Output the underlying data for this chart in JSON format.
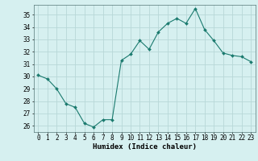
{
  "x": [
    0,
    1,
    2,
    3,
    4,
    5,
    6,
    7,
    8,
    9,
    10,
    11,
    12,
    13,
    14,
    15,
    16,
    17,
    18,
    19,
    20,
    21,
    22,
    23
  ],
  "y": [
    30.1,
    29.8,
    29.0,
    27.8,
    27.5,
    26.2,
    25.9,
    26.5,
    26.5,
    31.3,
    31.8,
    32.9,
    32.2,
    33.6,
    34.3,
    34.7,
    34.3,
    35.5,
    33.8,
    32.9,
    31.9,
    31.7,
    31.6,
    31.2
  ],
  "line_color": "#1a7a6e",
  "marker": "D",
  "marker_size": 2.0,
  "bg_color": "#d6f0f0",
  "grid_color": "#b8d8d8",
  "xlabel": "Humidex (Indice chaleur)",
  "ylim": [
    25.5,
    35.8
  ],
  "xlim": [
    -0.5,
    23.5
  ],
  "yticks": [
    26,
    27,
    28,
    29,
    30,
    31,
    32,
    33,
    34,
    35
  ],
  "xticks": [
    0,
    1,
    2,
    3,
    4,
    5,
    6,
    7,
    8,
    9,
    10,
    11,
    12,
    13,
    14,
    15,
    16,
    17,
    18,
    19,
    20,
    21,
    22,
    23
  ],
  "label_fontsize": 6.5,
  "tick_fontsize": 5.5
}
